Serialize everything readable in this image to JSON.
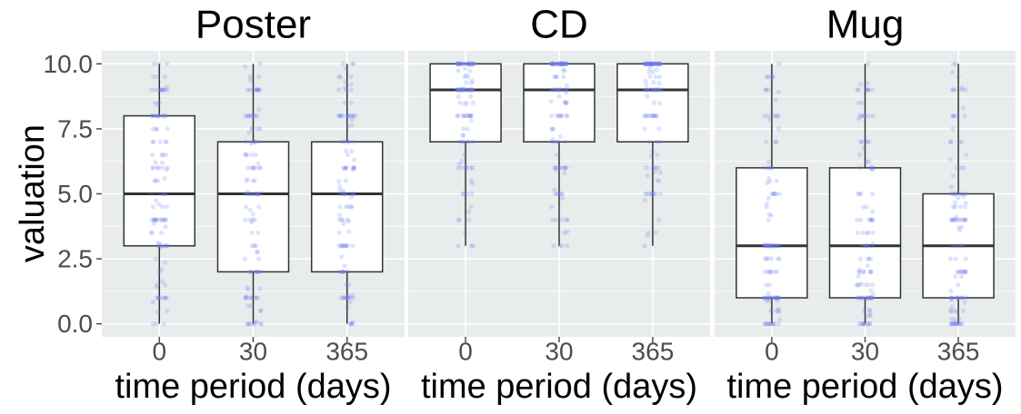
{
  "chart_data": {
    "type": "box",
    "ylabel": "valuation",
    "xlabel": "time period (days)",
    "ylim": [
      -0.5,
      10.5
    ],
    "y_ticks": [
      "0.0",
      "2.5",
      "5.0",
      "7.5",
      "10.0"
    ],
    "categories": [
      "0",
      "30",
      "365"
    ],
    "grid": true,
    "jitter_points": true,
    "colors": {
      "panel": "#e9ecec",
      "grid": "#ffffff",
      "box_fill": "#ffffff",
      "box_line": "#333333",
      "points": "#6e7ff2"
    },
    "facets": [
      {
        "title": "Poster",
        "boxes": [
          {
            "category": "0",
            "min": 0,
            "q1": 3,
            "median": 5,
            "q3": 8,
            "max": 10
          },
          {
            "category": "30",
            "min": 0,
            "q1": 2,
            "median": 5,
            "q3": 7,
            "max": 10
          },
          {
            "category": "365",
            "min": 0,
            "q1": 2,
            "median": 5,
            "q3": 7,
            "max": 10
          }
        ]
      },
      {
        "title": "CD",
        "boxes": [
          {
            "category": "0",
            "min": 3,
            "q1": 7,
            "median": 9,
            "q3": 10,
            "max": 10
          },
          {
            "category": "30",
            "min": 3,
            "q1": 7,
            "median": 9,
            "q3": 10,
            "max": 10
          },
          {
            "category": "365",
            "min": 3,
            "q1": 7,
            "median": 9,
            "q3": 10,
            "max": 10
          }
        ]
      },
      {
        "title": "Mug",
        "boxes": [
          {
            "category": "0",
            "min": 0,
            "q1": 1,
            "median": 3,
            "q3": 6,
            "max": 10
          },
          {
            "category": "30",
            "min": 0,
            "q1": 1,
            "median": 3,
            "q3": 6,
            "max": 10
          },
          {
            "category": "365",
            "min": 0,
            "q1": 1,
            "median": 3,
            "q3": 5,
            "max": 10
          }
        ]
      }
    ]
  }
}
